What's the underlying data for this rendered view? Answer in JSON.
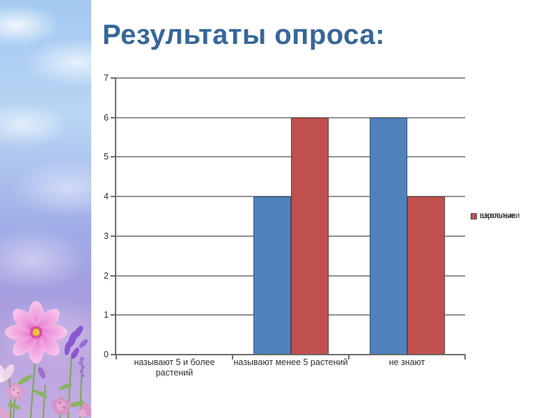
{
  "colors": {
    "title_text": "#376699",
    "axis": "#6b6b6b",
    "gridline": "#919191",
    "chart_text": "#2f2f2f",
    "bar_border": "rgba(45,35,35,0.55)"
  },
  "decor": {
    "left_strip_photo": "sky-with-clouds-and-pink-wildflowers"
  },
  "chart_data": {
    "type": "bar",
    "title": "Результаты опроса:",
    "categories": [
      "называют 5 и более растений",
      "называют менее 5 растений",
      "не знают"
    ],
    "category_display": [
      "называют 5 и более\nрастений",
      "называют менее 5 растений",
      "не знают"
    ],
    "series": [
      {
        "name": "школьники",
        "color": "#4F81BD",
        "values": [
          0,
          4,
          6
        ]
      },
      {
        "name": "взрослые",
        "color": "#C0504D",
        "values": [
          0,
          6,
          4
        ]
      }
    ],
    "xlabel": "",
    "ylabel": "",
    "ylim": [
      0,
      7
    ],
    "ytick_step": 1,
    "yticks": [
      0,
      1,
      2,
      3,
      4,
      5,
      6,
      7
    ],
    "grid": true,
    "legend_position": "right"
  }
}
